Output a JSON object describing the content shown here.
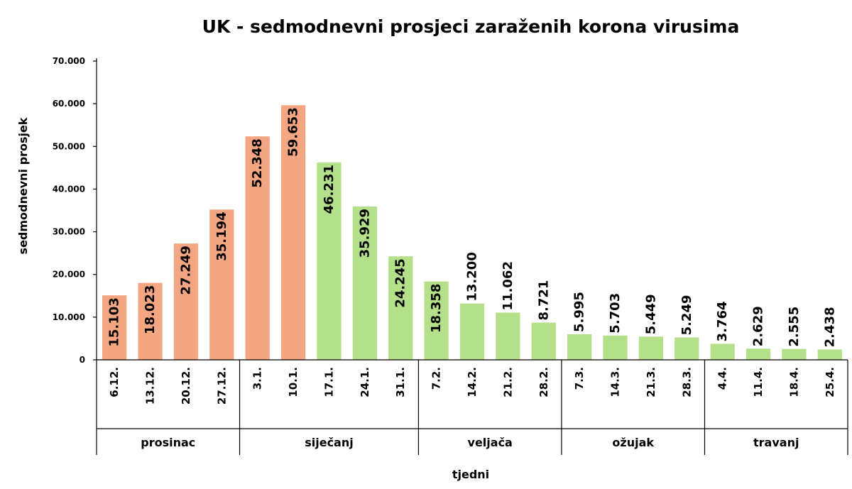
{
  "chart_data": {
    "type": "bar",
    "title": "UK - sedmodnevni prosjeci zaraženih korona virusima",
    "ylabel": "sedmodnevni prosjek",
    "xlabel": "tjedni",
    "ylim": [
      0,
      70000
    ],
    "yticks": [
      "0",
      "10.000",
      "20.000",
      "30.000",
      "40.000",
      "50.000",
      "60.000",
      "70.000"
    ],
    "grid": false,
    "categories": [
      "6.12.",
      "13.12.",
      "20.12.",
      "27.12.",
      "3.1.",
      "10.1.",
      "17.1.",
      "24.1.",
      "31.1.",
      "7.2.",
      "14.2.",
      "21.2.",
      "28.2.",
      "7.3.",
      "14.3.",
      "21.3.",
      "28.3.",
      "4.4.",
      "11.4.",
      "18.4.",
      "25.4."
    ],
    "values": [
      15103,
      18023,
      27249,
      35194,
      52348,
      59653,
      46231,
      35929,
      24245,
      18358,
      13200,
      11062,
      8721,
      5995,
      5703,
      5449,
      5249,
      3764,
      2629,
      2555,
      2438
    ],
    "data_labels": [
      "15.103",
      "18.023",
      "27.249",
      "35.194",
      "52.348",
      "59.653",
      "46.231",
      "35.929",
      "24.245",
      "18.358",
      "13.200",
      "11.062",
      "8.721",
      "5.995",
      "5.703",
      "5.449",
      "5.249",
      "3.764",
      "2.629",
      "2.555",
      "2.438"
    ],
    "bar_colors": [
      "#f4a582",
      "#f4a582",
      "#f4a582",
      "#f4a582",
      "#f4a582",
      "#f4a582",
      "#b5e08a",
      "#b5e08a",
      "#b5e08a",
      "#b5e08a",
      "#b5e08a",
      "#b5e08a",
      "#b5e08a",
      "#b5e08a",
      "#b5e08a",
      "#b5e08a",
      "#b5e08a",
      "#b5e08a",
      "#b5e08a",
      "#b5e08a",
      "#b5e08a"
    ],
    "label_position": [
      "inside",
      "inside",
      "inside",
      "inside",
      "inside",
      "inside",
      "inside",
      "inside",
      "inside",
      "inside",
      "outside",
      "outside",
      "outside",
      "outside",
      "outside",
      "outside",
      "outside",
      "outside",
      "outside",
      "outside",
      "outside"
    ],
    "groups": [
      {
        "label": "prosinac",
        "count": 4
      },
      {
        "label": "siječanj",
        "count": 5
      },
      {
        "label": "veljača",
        "count": 4
      },
      {
        "label": "ožujak",
        "count": 4
      },
      {
        "label": "travanj",
        "count": 4
      }
    ]
  }
}
